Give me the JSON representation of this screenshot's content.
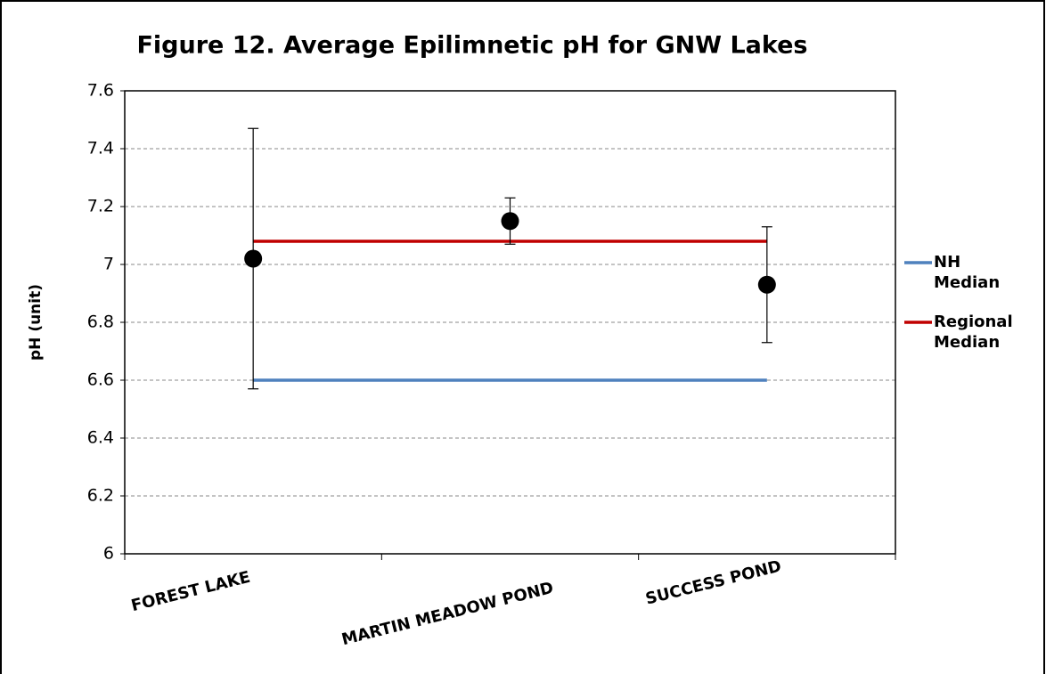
{
  "chart_data": {
    "type": "errorbar",
    "title": "Figure 12. Average Epilimnetic pH for GNW Lakes",
    "y_label": "pH (unit)",
    "categories": [
      "FOREST LAKE",
      "MARTIN MEADOW POND",
      "SUCCESS POND"
    ],
    "values": [
      7.02,
      7.15,
      6.93
    ],
    "errors": [
      0.45,
      0.08,
      0.2
    ],
    "color": "#000000",
    "reference_lines": [
      {
        "name": "NH Median",
        "value": 6.6,
        "color": "#4f81bd"
      },
      {
        "name": "Regional Median",
        "value": 7.08,
        "color": "#c00000"
      }
    ],
    "ylim": [
      6,
      7.6
    ],
    "yticks": [
      6,
      6.2,
      6.4,
      6.6,
      6.8,
      7,
      7.2,
      7.4,
      7.6
    ],
    "grid": true,
    "legend": "right"
  }
}
